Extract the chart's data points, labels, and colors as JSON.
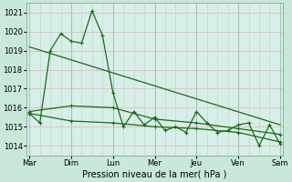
{
  "background_color": "#c8e8d8",
  "plot_bg_color": "#d8eee8",
  "grid_color_h": "#e8b8b8",
  "grid_color_v": "#c0d8d0",
  "line_color": "#1a6b1a",
  "xlabel": "Pression niveau de la mer( hPa )",
  "x_labels": [
    "Mar",
    "Dim",
    "Lun",
    "Mer",
    "Jeu",
    "Ven",
    "Sam"
  ],
  "ylim": [
    1013.5,
    1021.5
  ],
  "yticks": [
    1014,
    1015,
    1016,
    1017,
    1018,
    1019,
    1020,
    1021
  ],
  "series1_x": [
    0,
    10,
    20,
    30,
    40,
    50,
    60,
    70,
    80,
    90,
    100,
    110,
    120,
    130,
    140,
    150,
    160,
    170,
    180,
    190,
    200,
    210,
    220,
    230,
    240
  ],
  "series1_y": [
    1015.7,
    1015.2,
    1019.0,
    1019.9,
    1019.5,
    1019.4,
    1021.1,
    1019.8,
    1016.8,
    1015.0,
    1015.8,
    1015.1,
    1015.5,
    1014.8,
    1015.0,
    1014.7,
    1015.8,
    1015.2,
    1014.7,
    1014.8,
    1015.1,
    1015.2,
    1014.0,
    1015.1,
    1014.1
  ],
  "series2_x": [
    0,
    40,
    80,
    120,
    160,
    200,
    240
  ],
  "series2_y": [
    1015.8,
    1016.1,
    1016.0,
    1015.4,
    1015.2,
    1014.9,
    1014.6
  ],
  "series3_x": [
    0,
    40,
    80,
    120,
    160,
    200,
    240
  ],
  "series3_y": [
    1015.7,
    1015.3,
    1015.2,
    1015.0,
    1014.9,
    1014.7,
    1014.2
  ],
  "trend_x": [
    0,
    240
  ],
  "trend_y": [
    1019.2,
    1015.1
  ],
  "x_tick_pos": [
    0,
    40,
    80,
    120,
    160,
    200,
    240
  ],
  "xlim": [
    -3,
    243
  ]
}
